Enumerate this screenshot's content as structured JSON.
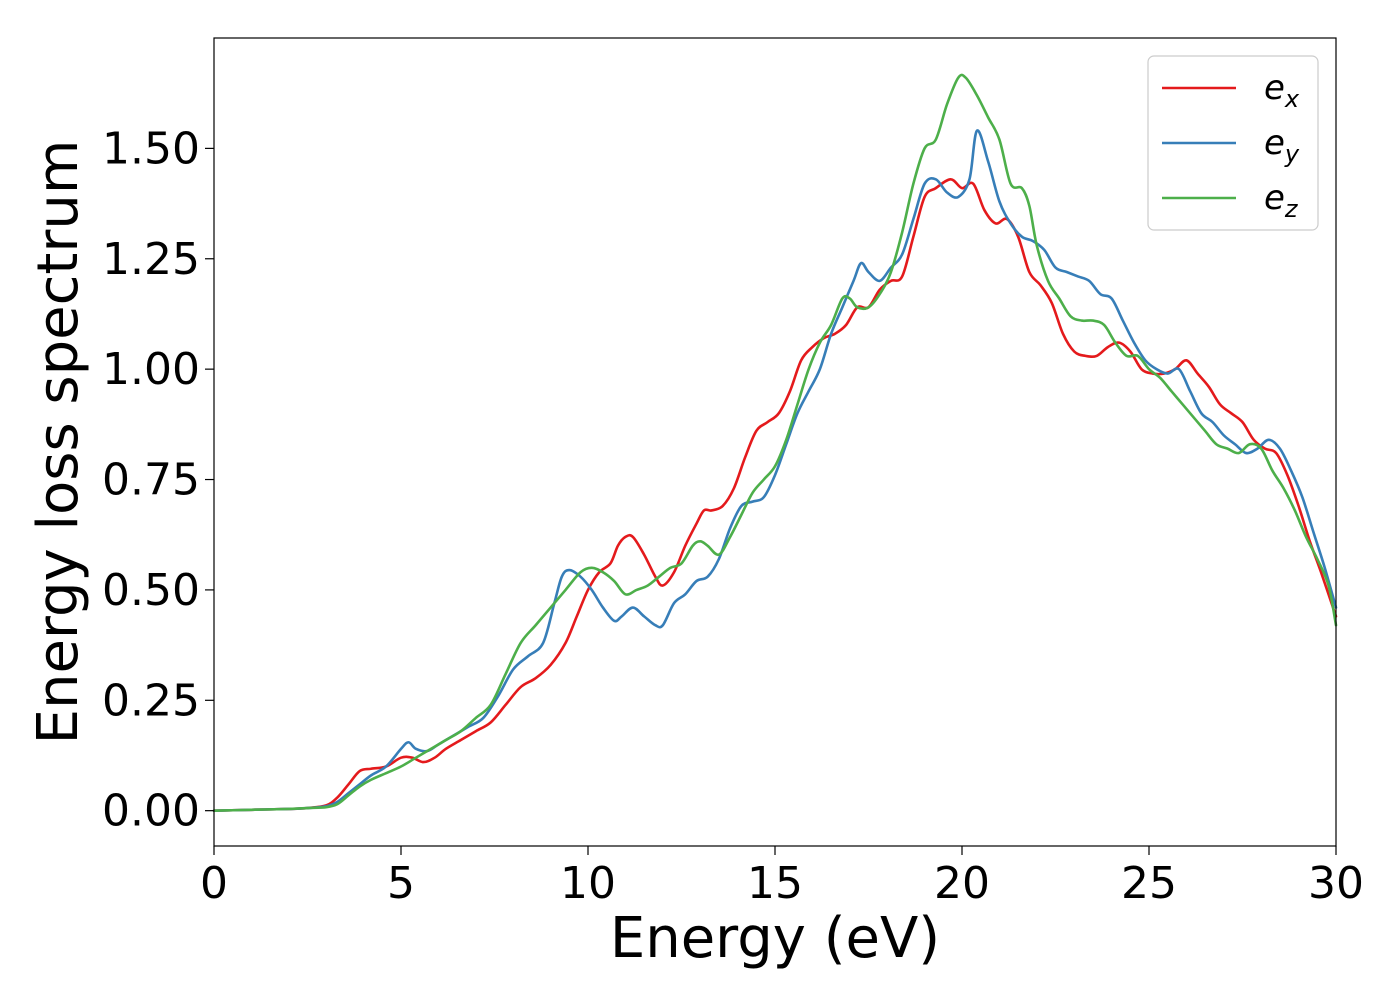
{
  "chart_data": {
    "type": "line",
    "title": "",
    "xlabel": "Energy (eV)",
    "ylabel": "Energy loss spectrum",
    "xlim": [
      0,
      30
    ],
    "ylim": [
      -0.08,
      1.75
    ],
    "xticks": [
      0,
      5,
      10,
      15,
      20,
      25,
      30
    ],
    "yticks": [
      0.0,
      0.25,
      0.5,
      0.75,
      1.0,
      1.25,
      1.5
    ],
    "xtick_labels": [
      "0",
      "5",
      "10",
      "15",
      "20",
      "25",
      "30"
    ],
    "ytick_labels": [
      "0.00",
      "0.25",
      "0.50",
      "0.75",
      "1.00",
      "1.25",
      "1.50"
    ],
    "grid": false,
    "legend": "top-right",
    "series": [
      {
        "name": "e_x",
        "label_base": "e",
        "label_sub": "x",
        "color": "#e41a1c",
        "x": [
          0,
          1,
          2,
          2.5,
          3,
          3.3,
          3.6,
          3.9,
          4.2,
          4.6,
          5.0,
          5.3,
          5.6,
          5.9,
          6.2,
          6.6,
          7.0,
          7.4,
          7.8,
          8.2,
          8.6,
          9.0,
          9.4,
          9.7,
          10.0,
          10.3,
          10.6,
          10.8,
          11.0,
          11.2,
          11.5,
          11.8,
          12.0,
          12.3,
          12.6,
          12.9,
          13.1,
          13.3,
          13.6,
          13.9,
          14.2,
          14.5,
          14.8,
          15.1,
          15.4,
          15.7,
          16.0,
          16.3,
          16.6,
          16.9,
          17.2,
          17.5,
          17.8,
          18.1,
          18.4,
          18.7,
          19.0,
          19.3,
          19.7,
          20.0,
          20.3,
          20.6,
          20.9,
          21.2,
          21.5,
          21.8,
          22.1,
          22.4,
          22.7,
          23.0,
          23.3,
          23.6,
          23.9,
          24.2,
          24.5,
          24.8,
          25.1,
          25.4,
          25.7,
          26.0,
          26.3,
          26.6,
          26.9,
          27.2,
          27.5,
          27.8,
          28.1,
          28.4,
          28.7,
          29.0,
          29.3,
          29.6,
          30.0
        ],
        "y": [
          0,
          0.002,
          0.004,
          0.006,
          0.012,
          0.03,
          0.06,
          0.09,
          0.095,
          0.1,
          0.12,
          0.12,
          0.11,
          0.12,
          0.14,
          0.16,
          0.18,
          0.2,
          0.24,
          0.28,
          0.3,
          0.33,
          0.38,
          0.44,
          0.5,
          0.54,
          0.56,
          0.6,
          0.62,
          0.62,
          0.58,
          0.53,
          0.51,
          0.54,
          0.6,
          0.65,
          0.68,
          0.68,
          0.69,
          0.73,
          0.8,
          0.86,
          0.88,
          0.9,
          0.95,
          1.02,
          1.05,
          1.07,
          1.08,
          1.1,
          1.14,
          1.14,
          1.18,
          1.2,
          1.21,
          1.3,
          1.39,
          1.41,
          1.43,
          1.41,
          1.42,
          1.36,
          1.33,
          1.34,
          1.3,
          1.22,
          1.19,
          1.15,
          1.08,
          1.04,
          1.03,
          1.03,
          1.05,
          1.06,
          1.04,
          1.0,
          0.99,
          0.99,
          1.0,
          1.02,
          0.99,
          0.96,
          0.92,
          0.9,
          0.88,
          0.84,
          0.82,
          0.81,
          0.76,
          0.69,
          0.61,
          0.54,
          0.44
        ]
      },
      {
        "name": "e_y",
        "label_base": "e",
        "label_sub": "y",
        "color": "#377eb8",
        "x": [
          0,
          1,
          2,
          2.5,
          3,
          3.3,
          3.6,
          3.9,
          4.2,
          4.6,
          5.0,
          5.2,
          5.4,
          5.7,
          6.0,
          6.4,
          6.8,
          7.2,
          7.6,
          8.0,
          8.4,
          8.8,
          9.1,
          9.3,
          9.5,
          9.8,
          10.1,
          10.4,
          10.7,
          10.9,
          11.2,
          11.5,
          11.8,
          12.0,
          12.3,
          12.6,
          12.9,
          13.2,
          13.5,
          13.8,
          14.1,
          14.4,
          14.7,
          15.0,
          15.3,
          15.6,
          15.9,
          16.2,
          16.5,
          16.8,
          17.1,
          17.3,
          17.5,
          17.8,
          18.1,
          18.4,
          18.7,
          19.0,
          19.3,
          19.6,
          19.9,
          20.2,
          20.4,
          20.7,
          21.0,
          21.3,
          21.6,
          21.9,
          22.2,
          22.5,
          22.8,
          23.1,
          23.4,
          23.7,
          24.0,
          24.3,
          24.6,
          24.9,
          25.2,
          25.5,
          25.8,
          26.1,
          26.4,
          26.7,
          27.0,
          27.3,
          27.6,
          27.9,
          28.2,
          28.5,
          28.8,
          29.1,
          29.4,
          29.7,
          30.0
        ],
        "y": [
          0,
          0.002,
          0.004,
          0.006,
          0.01,
          0.02,
          0.04,
          0.06,
          0.08,
          0.1,
          0.14,
          0.155,
          0.14,
          0.135,
          0.15,
          0.17,
          0.19,
          0.21,
          0.26,
          0.32,
          0.35,
          0.38,
          0.47,
          0.53,
          0.545,
          0.53,
          0.5,
          0.46,
          0.43,
          0.44,
          0.46,
          0.44,
          0.42,
          0.42,
          0.47,
          0.49,
          0.52,
          0.53,
          0.57,
          0.64,
          0.69,
          0.7,
          0.71,
          0.76,
          0.83,
          0.9,
          0.95,
          1.0,
          1.08,
          1.14,
          1.2,
          1.24,
          1.22,
          1.2,
          1.23,
          1.26,
          1.34,
          1.42,
          1.43,
          1.4,
          1.39,
          1.43,
          1.54,
          1.47,
          1.38,
          1.33,
          1.3,
          1.29,
          1.27,
          1.23,
          1.22,
          1.21,
          1.2,
          1.17,
          1.16,
          1.11,
          1.06,
          1.02,
          1.0,
          0.99,
          1.0,
          0.95,
          0.9,
          0.88,
          0.85,
          0.83,
          0.81,
          0.82,
          0.84,
          0.82,
          0.77,
          0.71,
          0.63,
          0.55,
          0.46
        ]
      },
      {
        "name": "e_z",
        "label_base": "e",
        "label_sub": "z",
        "color": "#4daf4a",
        "x": [
          0,
          1,
          2,
          2.5,
          3,
          3.3,
          3.6,
          3.9,
          4.2,
          4.6,
          5.0,
          5.4,
          5.8,
          6.2,
          6.6,
          7.0,
          7.4,
          7.8,
          8.2,
          8.6,
          9.0,
          9.4,
          9.8,
          10.1,
          10.4,
          10.7,
          11.0,
          11.3,
          11.6,
          11.9,
          12.2,
          12.5,
          12.8,
          13.0,
          13.2,
          13.5,
          13.8,
          14.1,
          14.4,
          14.7,
          15.0,
          15.3,
          15.6,
          15.9,
          16.2,
          16.5,
          16.8,
          17.0,
          17.2,
          17.5,
          17.8,
          18.1,
          18.4,
          18.7,
          19.0,
          19.3,
          19.6,
          19.9,
          20.1,
          20.4,
          20.7,
          21.0,
          21.3,
          21.6,
          21.8,
          22.0,
          22.3,
          22.6,
          22.9,
          23.2,
          23.5,
          23.8,
          24.1,
          24.4,
          24.7,
          25.0,
          25.3,
          25.6,
          25.9,
          26.2,
          26.5,
          26.8,
          27.1,
          27.4,
          27.7,
          28.0,
          28.3,
          28.6,
          28.9,
          29.2,
          29.5,
          29.8,
          30.0
        ],
        "y": [
          0,
          0.002,
          0.004,
          0.006,
          0.008,
          0.015,
          0.035,
          0.055,
          0.07,
          0.085,
          0.1,
          0.12,
          0.14,
          0.16,
          0.18,
          0.21,
          0.24,
          0.31,
          0.38,
          0.42,
          0.46,
          0.5,
          0.54,
          0.55,
          0.54,
          0.52,
          0.49,
          0.5,
          0.51,
          0.53,
          0.55,
          0.56,
          0.6,
          0.61,
          0.6,
          0.58,
          0.62,
          0.67,
          0.72,
          0.75,
          0.78,
          0.84,
          0.92,
          1.0,
          1.06,
          1.1,
          1.16,
          1.16,
          1.14,
          1.14,
          1.17,
          1.22,
          1.31,
          1.42,
          1.5,
          1.52,
          1.6,
          1.66,
          1.66,
          1.62,
          1.57,
          1.52,
          1.42,
          1.41,
          1.37,
          1.28,
          1.2,
          1.16,
          1.12,
          1.11,
          1.11,
          1.1,
          1.06,
          1.03,
          1.03,
          1.0,
          0.98,
          0.95,
          0.92,
          0.89,
          0.86,
          0.83,
          0.82,
          0.81,
          0.83,
          0.82,
          0.77,
          0.73,
          0.68,
          0.62,
          0.57,
          0.51,
          0.42
        ]
      }
    ]
  }
}
